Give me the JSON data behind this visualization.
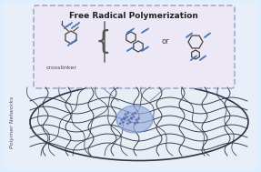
{
  "bg_color": "#ddeeff",
  "outer_bg": "#e8f0f8",
  "box_bg": "#ede8f5",
  "box_border": "#aaaacc",
  "ellipse_color": "#e8eef5",
  "ellipse_edge": "#333344",
  "title_text": "Free Radical Polymerization",
  "crosslinker_text": "crosslinker",
  "polymer_networks_text": "Polymer Networks",
  "or_text": "or",
  "blue_highlight": "#7799cc",
  "blue_light": "#aabbdd",
  "figsize": [
    2.87,
    1.89
  ],
  "dpi": 100
}
